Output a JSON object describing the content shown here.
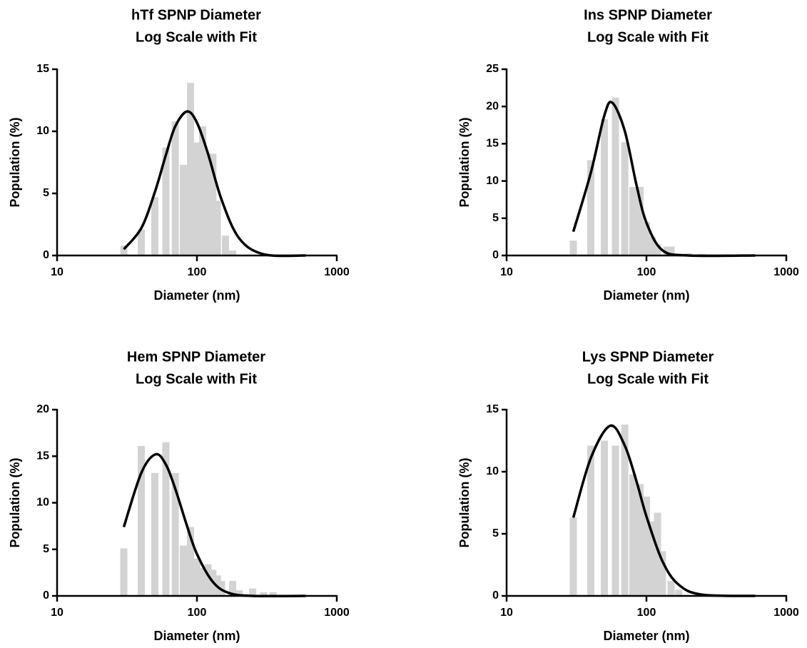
{
  "chart_data": [
    {
      "type": "bar-fit",
      "title": "hTf SPNP Diameter",
      "subtitle": "Log Scale with Fit",
      "x_label": "Diameter (nm)",
      "y_label": "Population (%)",
      "log_x": true,
      "xlim": [
        10,
        1000
      ],
      "xticks": [
        10,
        100,
        1000
      ],
      "ylim": [
        0,
        15
      ],
      "yticks": [
        0,
        5,
        10,
        15
      ],
      "color": "#d3d3d3",
      "fit_color": "#000000",
      "x": [
        30,
        40,
        50,
        60,
        70,
        80,
        90,
        100,
        110,
        120,
        130,
        140,
        160,
        180
      ],
      "values": [
        0.8,
        2.1,
        4.7,
        8.7,
        10.8,
        7.3,
        13.9,
        9.1,
        10.4,
        8.2,
        8.2,
        4.4,
        1.6,
        0.4
      ],
      "fit": {
        "x": [
          30,
          40,
          50,
          60,
          70,
          85,
          100,
          120,
          150,
          200,
          300,
          600
        ],
        "values": [
          0.5,
          2.2,
          5.1,
          8.1,
          10.4,
          11.6,
          10.7,
          8.2,
          4.5,
          1.4,
          0.1,
          0
        ]
      }
    },
    {
      "type": "bar-fit",
      "title": "Ins SPNP Diameter",
      "subtitle": "Log Scale with Fit",
      "x_label": "Diameter (nm)",
      "y_label": "Population (%)",
      "log_x": true,
      "xlim": [
        10,
        1000
      ],
      "xticks": [
        10,
        100,
        1000
      ],
      "ylim": [
        0,
        25
      ],
      "yticks": [
        0,
        5,
        10,
        15,
        20,
        25
      ],
      "color": "#d3d3d3",
      "fit_color": "#000000",
      "x": [
        30,
        40,
        50,
        60,
        70,
        80,
        90,
        100,
        110,
        120,
        140,
        150,
        200,
        250
      ],
      "values": [
        2.0,
        12.8,
        18.3,
        21.2,
        15.2,
        9.2,
        9.2,
        4.5,
        2.5,
        1.5,
        1.2,
        1.2,
        0.3,
        0.2
      ],
      "fit": {
        "x": [
          30,
          40,
          50,
          57,
          70,
          85,
          100,
          130,
          200,
          600
        ],
        "values": [
          3.2,
          11.1,
          18.8,
          20.5,
          16.7,
          9.4,
          4.4,
          0.7,
          0,
          0
        ]
      }
    },
    {
      "type": "bar-fit",
      "title": "Hem SPNP Diameter",
      "subtitle": "Log Scale with Fit",
      "x_label": "Diameter (nm)",
      "y_label": "Population (%)",
      "log_x": true,
      "xlim": [
        10,
        1000
      ],
      "xticks": [
        10,
        100,
        1000
      ],
      "ylim": [
        0,
        20
      ],
      "yticks": [
        0,
        5,
        10,
        15,
        20
      ],
      "color": "#d3d3d3",
      "fit_color": "#000000",
      "x": [
        30,
        40,
        50,
        60,
        70,
        80,
        90,
        100,
        110,
        120,
        130,
        140,
        150,
        180,
        200,
        250,
        300,
        350
      ],
      "values": [
        5.1,
        16.1,
        13.2,
        16.5,
        13.2,
        5.4,
        7.4,
        4.0,
        3.0,
        3.4,
        2.8,
        2.2,
        1.6,
        1.6,
        0.6,
        0.8,
        0.4,
        0.4
      ],
      "fit": {
        "x": [
          30,
          40,
          50.6,
          60,
          70,
          85,
          100,
          130,
          170,
          250,
          600
        ],
        "values": [
          7.4,
          13.2,
          15.2,
          14.1,
          11.5,
          7.5,
          4.5,
          1.5,
          0.3,
          0,
          0
        ]
      }
    },
    {
      "type": "bar-fit",
      "title": "Lys SPNP Diameter",
      "subtitle": "Log Scale with Fit",
      "x_label": "Diameter (nm)",
      "y_label": "Population (%)",
      "log_x": true,
      "xlim": [
        10,
        1000
      ],
      "xticks": [
        10,
        100,
        1000
      ],
      "ylim": [
        0,
        15
      ],
      "yticks": [
        0,
        5,
        10,
        15
      ],
      "color": "#d3d3d3",
      "fit_color": "#000000",
      "x": [
        30,
        40,
        50,
        60,
        70,
        80,
        90,
        100,
        110,
        120,
        130,
        150,
        170
      ],
      "values": [
        6.3,
        12.1,
        12.5,
        12.1,
        13.8,
        9.8,
        9.0,
        8.0,
        6.0,
        6.7,
        3.6,
        1.2,
        0.5
      ],
      "fit": {
        "x": [
          30,
          40,
          55,
          70,
          85,
          100,
          130,
          170,
          250,
          600
        ],
        "values": [
          6.3,
          11.1,
          13.7,
          12.1,
          9.2,
          6.4,
          2.8,
          0.9,
          0.1,
          0
        ]
      }
    }
  ]
}
